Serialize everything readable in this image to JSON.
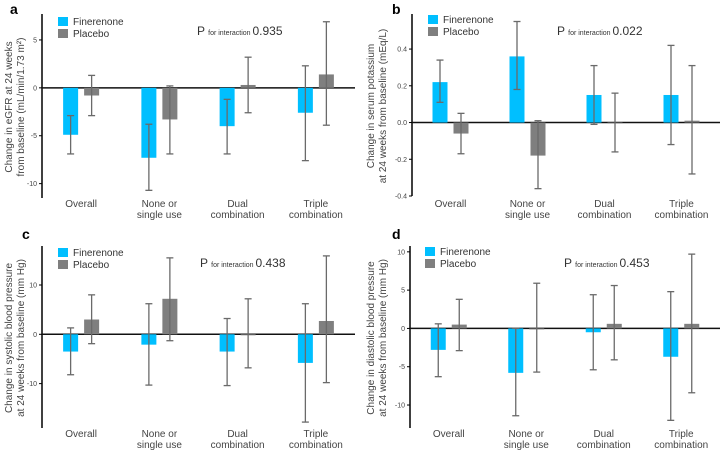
{
  "legend": {
    "finerenone": "Finerenone",
    "placebo": "Placebo"
  },
  "colors": {
    "finerenone": "#00bfff",
    "placebo": "#7f7f7f",
    "axis": "#000000",
    "error": "#6a6a6a"
  },
  "chart_data": [
    {
      "panel": "a",
      "type": "bar",
      "ylabel": [
        "Change in eGFR at 24 weeks",
        "from baseline (mL/min/1.73 m²)"
      ],
      "p_label": "P",
      "p_sub": "for interaction",
      "p_value": "0.935",
      "categories": [
        [
          "Overall"
        ],
        [
          "None or",
          "single use"
        ],
        [
          "Dual",
          "combination"
        ],
        [
          "Triple",
          "combination"
        ]
      ],
      "ylim": [
        -11.5,
        7.5
      ],
      "yticks": [
        5,
        0,
        -5,
        -10
      ],
      "ytick_labels": [
        "5",
        "0",
        "-5",
        "-10"
      ],
      "series": [
        {
          "name": "Finerenone",
          "values": [
            -4.9,
            -7.3,
            -4.0,
            -2.6
          ],
          "err_high": [
            -2.9,
            -3.8,
            -1.2,
            2.3
          ],
          "err_low": [
            -6.9,
            -10.7,
            -6.9,
            -7.6
          ]
        },
        {
          "name": "Placebo",
          "values": [
            -0.8,
            -3.3,
            0.3,
            1.4
          ],
          "err_high": [
            1.3,
            0.2,
            3.2,
            6.9
          ],
          "err_low": [
            -2.9,
            -6.9,
            -2.6,
            -3.9
          ]
        }
      ]
    },
    {
      "panel": "b",
      "type": "bar",
      "ylabel": [
        "Change in serum potassium",
        "at 24 weeks from baseline (mEq/L)"
      ],
      "p_label": "P",
      "p_sub": "for interaction",
      "p_value": "0.022",
      "categories": [
        [
          "Overall"
        ],
        [
          "None or",
          "single use"
        ],
        [
          "Dual",
          "combination"
        ],
        [
          "Triple",
          "combination"
        ]
      ],
      "ylim": [
        -0.4,
        0.58
      ],
      "yticks": [
        0.4,
        0.2,
        0.0,
        -0.2,
        -0.4
      ],
      "ytick_labels": [
        "0.4",
        "0.2",
        "0.0",
        "-0.2",
        "-0.4"
      ],
      "series": [
        {
          "name": "Finerenone",
          "values": [
            0.22,
            0.36,
            0.15,
            0.15
          ],
          "err_high": [
            0.34,
            0.55,
            0.31,
            0.42
          ],
          "err_low": [
            0.11,
            0.18,
            -0.01,
            -0.12
          ]
        },
        {
          "name": "Placebo",
          "values": [
            -0.06,
            -0.18,
            0.0,
            0.01
          ],
          "err_high": [
            0.05,
            0.01,
            0.16,
            0.31
          ],
          "err_low": [
            -0.17,
            -0.36,
            -0.16,
            -0.28
          ]
        }
      ]
    },
    {
      "panel": "c",
      "type": "bar",
      "ylabel": [
        "Change in systolic blood pressure",
        "at 24 weeks from baseline (mm Hg)"
      ],
      "p_label": "P",
      "p_sub": "for interaction",
      "p_value": "0.438",
      "categories": [
        [
          "Overall"
        ],
        [
          "None or",
          "single use"
        ],
        [
          "Dual",
          "combination"
        ],
        [
          "Triple",
          "combination"
        ]
      ],
      "ylim": [
        -19,
        17.5
      ],
      "yticks": [
        10,
        0,
        -10
      ],
      "ytick_labels": [
        "10",
        "0",
        "-10"
      ],
      "series": [
        {
          "name": "Finerenone",
          "values": [
            -3.5,
            -2.1,
            -3.5,
            -5.8
          ],
          "err_high": [
            1.3,
            6.2,
            3.2,
            6.2
          ],
          "err_low": [
            -8.2,
            -10.3,
            -10.4,
            -17.8
          ]
        },
        {
          "name": "Placebo",
          "values": [
            3.0,
            7.2,
            0.0,
            2.7
          ],
          "err_high": [
            8.0,
            15.5,
            7.2,
            15.9
          ],
          "err_low": [
            -1.9,
            -1.3,
            -6.8,
            -9.8
          ]
        }
      ]
    },
    {
      "panel": "d",
      "type": "bar",
      "ylabel": [
        "Change in diastolic blood pressure",
        "at 24 weeks from baseline (mm Hg)"
      ],
      "p_label": "P",
      "p_sub": "for interaction",
      "p_value": "0.453",
      "categories": [
        [
          "Overall"
        ],
        [
          "None or",
          "single use"
        ],
        [
          "Dual",
          "combination"
        ],
        [
          "Triple",
          "combination"
        ]
      ],
      "ylim": [
        -13,
        10.5
      ],
      "yticks": [
        10,
        5,
        0,
        -5,
        -10
      ],
      "ytick_labels": [
        "10",
        "5",
        "0",
        "-5",
        "-10"
      ],
      "series": [
        {
          "name": "Finerenone",
          "values": [
            -2.8,
            -5.8,
            -0.5,
            -3.7
          ],
          "err_high": [
            0.6,
            0.0,
            4.4,
            4.8
          ],
          "err_low": [
            -6.3,
            -11.4,
            -5.4,
            -12.0
          ]
        },
        {
          "name": "Placebo",
          "values": [
            0.5,
            0.0,
            0.6,
            0.6
          ],
          "err_high": [
            3.8,
            5.9,
            5.6,
            9.7
          ],
          "err_low": [
            -2.9,
            -5.7,
            -4.1,
            -8.4
          ]
        }
      ]
    }
  ]
}
